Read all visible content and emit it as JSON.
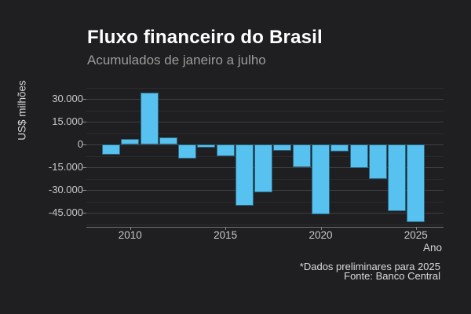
{
  "header": {
    "title": "Fluxo financeiro do Brasil",
    "subtitle": "Acumulados de janeiro a julho"
  },
  "footer": {
    "note": "*Dados preliminares para 2025",
    "source": "Fonte: Banco Central"
  },
  "chart_data": {
    "type": "bar",
    "title": "Fluxo financeiro do Brasil",
    "subtitle": "Acumulados de janeiro a julho",
    "xlabel": "Ano",
    "ylabel": "US$ milhões",
    "unit": "US$ milhões",
    "categories": [
      2009,
      2010,
      2011,
      2012,
      2013,
      2014,
      2015,
      2016,
      2017,
      2018,
      2019,
      2020,
      2021,
      2022,
      2023,
      2024,
      2025
    ],
    "values": [
      -6400,
      3900,
      34400,
      4700,
      -9000,
      -2100,
      -7800,
      -40000,
      -31400,
      -4100,
      -14700,
      -46000,
      -4500,
      -15500,
      -22800,
      -44000,
      -50900
    ],
    "ylim": [
      -54200,
      39500
    ],
    "yticks_major": [
      30000,
      15000,
      0,
      -15000,
      -30000,
      -45000
    ],
    "ytick_labels": [
      "30.000",
      "15.000",
      "0",
      "-15.000",
      "-30.000",
      "-45.000"
    ],
    "yticks_minor": [
      37500,
      22500,
      7500,
      -7500,
      -22500,
      -37500,
      -52500
    ],
    "xticks": [
      2010,
      2015,
      2020,
      2025
    ],
    "xtick_labels": [
      "2010",
      "2015",
      "2020",
      "2025"
    ],
    "grid": true,
    "legend": false,
    "colors": {
      "background": "#1f1f21",
      "bar": "#57c1ef",
      "grid_major": "#3f3f41",
      "grid_minor": "#2b2b2d",
      "tick_text": "#c8c8c8",
      "axis_title_text": "#d4d4d4",
      "title_text": "#ffffff",
      "subtitle_text": "#9b9b9b",
      "caption_text": "#dcdcdc"
    }
  }
}
